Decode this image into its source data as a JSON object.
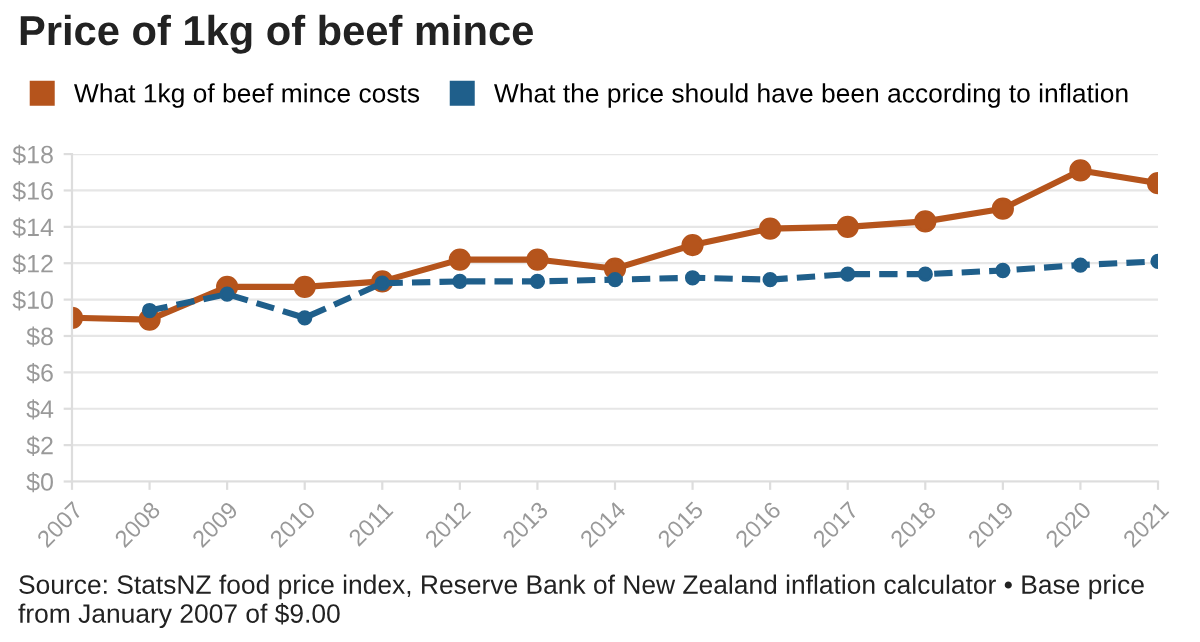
{
  "chart_data": {
    "type": "line",
    "title": "Price of 1kg of beef mince",
    "categories": [
      "2007",
      "2008",
      "2009",
      "2010",
      "2011",
      "2012",
      "2013",
      "2014",
      "2015",
      "2016",
      "2017",
      "2018",
      "2019",
      "2020",
      "2021"
    ],
    "series": [
      {
        "name": "What 1kg of beef mince costs",
        "color": "#b5541c",
        "line_style": "solid",
        "values": [
          9.0,
          8.9,
          10.7,
          10.7,
          11.0,
          12.2,
          12.2,
          11.7,
          13.0,
          13.9,
          14.0,
          14.3,
          15.0,
          17.1,
          16.4
        ]
      },
      {
        "name": "What the price should have been according to inflation",
        "color": "#1f5f8b",
        "line_style": "dashed",
        "values": [
          null,
          9.4,
          10.3,
          9.0,
          10.9,
          11.0,
          11.0,
          11.1,
          11.2,
          11.1,
          11.4,
          11.4,
          11.6,
          11.9,
          12.1
        ]
      }
    ],
    "ylim": [
      0,
      18
    ],
    "yticks": [
      {
        "value": 0,
        "label": "$0"
      },
      {
        "value": 2,
        "label": "$2"
      },
      {
        "value": 4,
        "label": "$4"
      },
      {
        "value": 6,
        "label": "$6"
      },
      {
        "value": 8,
        "label": "$8"
      },
      {
        "value": 10,
        "label": "$10"
      },
      {
        "value": 12,
        "label": "$12"
      },
      {
        "value": 14,
        "label": "$14"
      },
      {
        "value": 16,
        "label": "$16"
      },
      {
        "value": 18,
        "label": "$18"
      }
    ],
    "grid": "y",
    "legend": "top left",
    "marker": "circle",
    "annotations": [
      "Source: StatsNZ food price index, Reserve Bank of New Zealand inflation calculator • Base price from January 2007 of $9.00"
    ]
  }
}
